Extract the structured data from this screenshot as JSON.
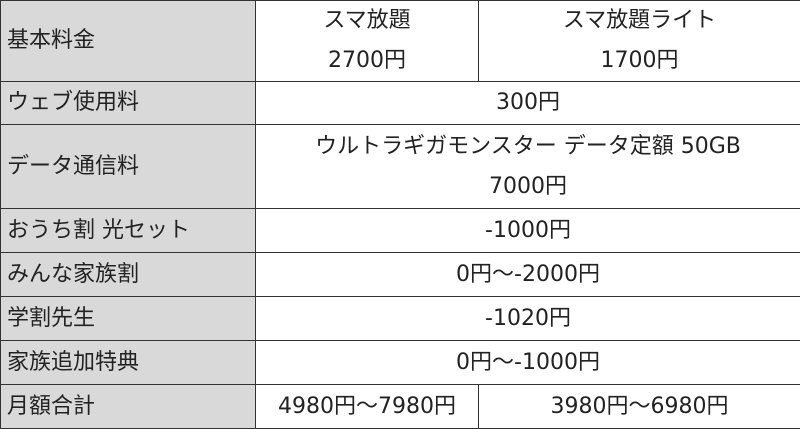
{
  "table": {
    "header": {
      "label": "基本料金",
      "plans": [
        {
          "name": "スマ放題",
          "price": "2700円"
        },
        {
          "name": "スマ放題ライト",
          "price": "1700円"
        }
      ]
    },
    "rows": [
      {
        "label": "ウェブ使用料",
        "value": "300円"
      },
      {
        "label": "データ通信料",
        "value": "ウルトラギガモンスター データ定額 50GB",
        "value2": "7000円"
      },
      {
        "label": "おうち割 光セット",
        "value": "-1000円"
      },
      {
        "label": "みんな家族割",
        "value": "0円～-2000円"
      },
      {
        "label": "学割先生",
        "value": "-1020円"
      },
      {
        "label": "家族追加特典",
        "value": "0円～-1000円"
      }
    ],
    "total": {
      "label": "月額合計",
      "values": [
        "4980円～7980円",
        "3980円～6980円"
      ]
    }
  }
}
